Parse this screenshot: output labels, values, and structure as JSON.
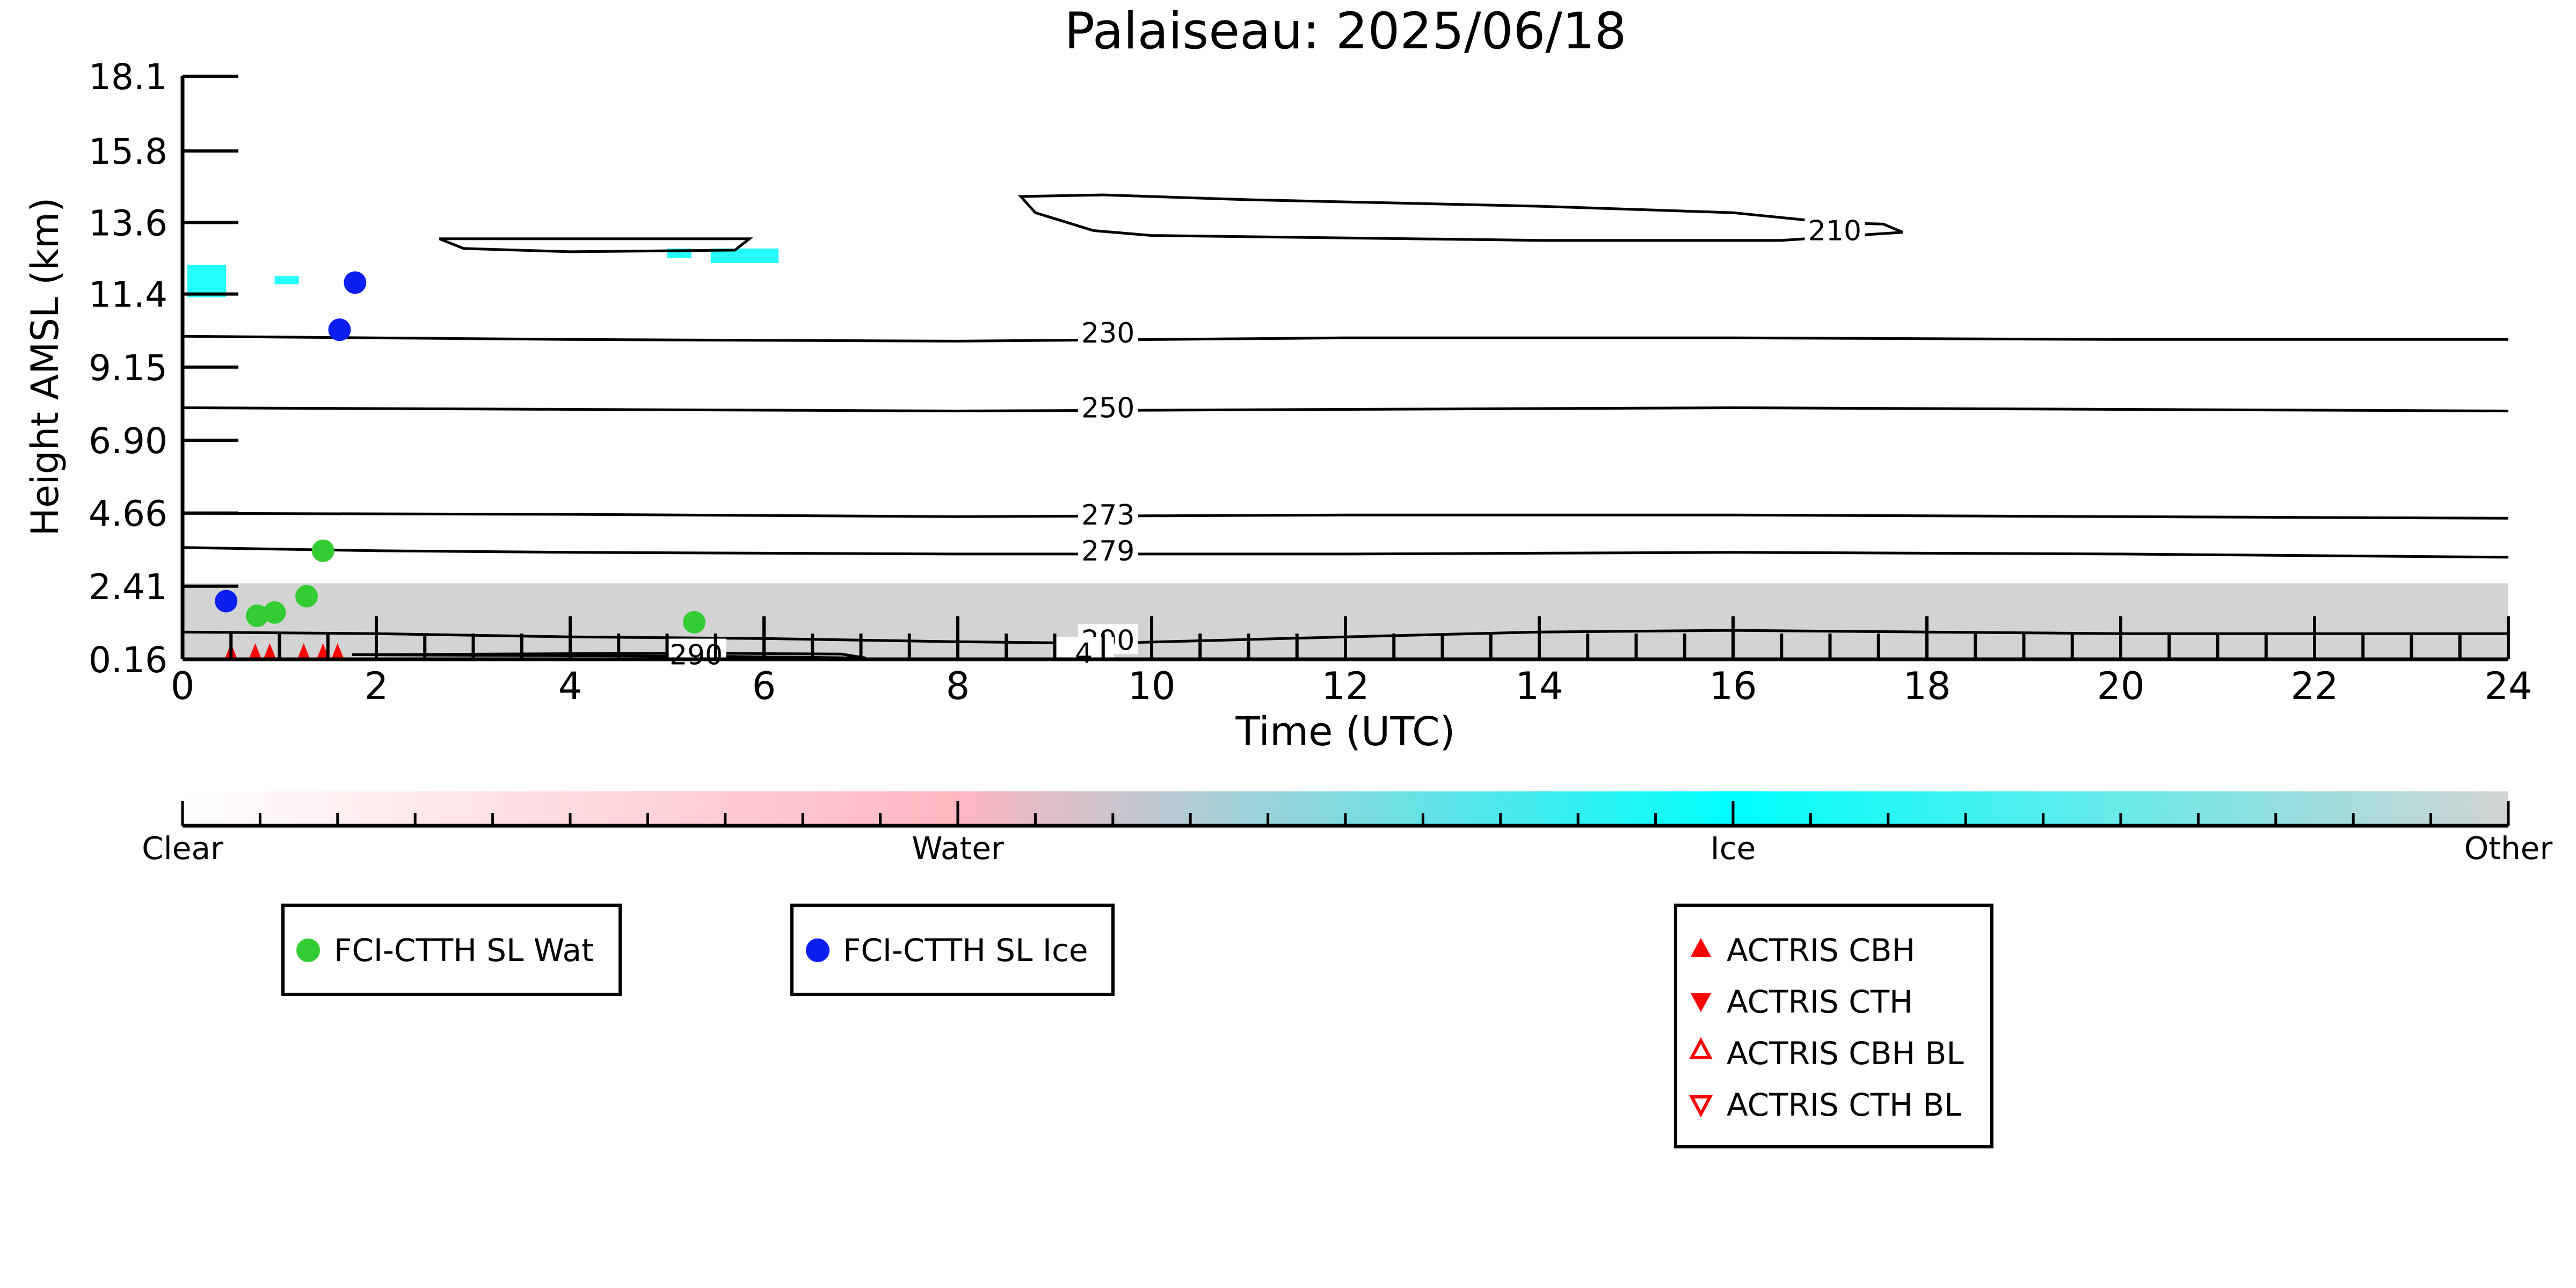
{
  "chart_data": {
    "type": "scatter",
    "title": "Palaiseau: 2025/06/18",
    "xlabel": "Time (UTC)",
    "ylabel": "Height AMSL (km)",
    "xlim": [
      0,
      24
    ],
    "xticks": [
      "0",
      "2",
      "4",
      "6",
      "8",
      "10",
      "12",
      "14",
      "16",
      "18",
      "20",
      "22",
      "24"
    ],
    "yticks": [
      "0.16",
      "2.41",
      "4.66",
      "6.90",
      "9.15",
      "11.4",
      "13.6",
      "15.8",
      "18.1"
    ],
    "ytick_values": [
      0.16,
      2.41,
      4.66,
      6.9,
      9.15,
      11.4,
      13.6,
      15.8,
      18.1
    ],
    "ylim": [
      0.16,
      18.1
    ],
    "grid": false,
    "colorbar": {
      "labels": [
        "Clear",
        "Water",
        "Ice",
        "Other"
      ],
      "colors": [
        "#ffffff",
        "#ffb6c1",
        "#00ffff",
        "#d3d3d3"
      ]
    },
    "isotherm_labels": [
      {
        "label": "210",
        "x": 17.05,
        "y": 13.35
      },
      {
        "label": "230",
        "x": 9.55,
        "y": 10.2
      },
      {
        "label": "250",
        "x": 9.55,
        "y": 7.9
      },
      {
        "label": "273",
        "x": 9.55,
        "y": 4.6
      },
      {
        "label": "279",
        "x": 9.55,
        "y": 3.5
      },
      {
        "label": "290",
        "x": 9.55,
        "y": 0.75
      },
      {
        "label": "290",
        "x": 5.3,
        "y": 0.3
      },
      {
        "label": "4",
        "x": 9.3,
        "y": 0.35
      }
    ],
    "isotherms": [
      {
        "label": "230",
        "points": [
          [
            0,
            10.1
          ],
          [
            4,
            10.0
          ],
          [
            8,
            9.95
          ],
          [
            12,
            10.05
          ],
          [
            16,
            10.05
          ],
          [
            20,
            10.0
          ],
          [
            24,
            10.0
          ]
        ]
      },
      {
        "label": "250",
        "points": [
          [
            0,
            7.9
          ],
          [
            4,
            7.85
          ],
          [
            8,
            7.8
          ],
          [
            12,
            7.85
          ],
          [
            16,
            7.9
          ],
          [
            20,
            7.85
          ],
          [
            24,
            7.8
          ]
        ]
      },
      {
        "label": "273",
        "points": [
          [
            0,
            4.65
          ],
          [
            4,
            4.62
          ],
          [
            8,
            4.55
          ],
          [
            12,
            4.6
          ],
          [
            16,
            4.6
          ],
          [
            20,
            4.55
          ],
          [
            24,
            4.5
          ]
        ]
      },
      {
        "label": "279",
        "points": [
          [
            0,
            3.6
          ],
          [
            2,
            3.5
          ],
          [
            4,
            3.45
          ],
          [
            8,
            3.4
          ],
          [
            12,
            3.4
          ],
          [
            16,
            3.45
          ],
          [
            20,
            3.4
          ],
          [
            24,
            3.3
          ]
        ]
      },
      {
        "label": "290",
        "points": [
          [
            0,
            1.0
          ],
          [
            2,
            0.95
          ],
          [
            4,
            0.85
          ],
          [
            6,
            0.8
          ],
          [
            8,
            0.7
          ],
          [
            9.5,
            0.65
          ],
          [
            12,
            0.85
          ],
          [
            14,
            1.0
          ],
          [
            16,
            1.05
          ],
          [
            18,
            1.0
          ],
          [
            20,
            0.95
          ],
          [
            22,
            0.95
          ],
          [
            24,
            0.95
          ]
        ]
      }
    ],
    "closed_contours": [
      {
        "points": [
          [
            2.65,
            13.1
          ],
          [
            5.85,
            13.1
          ],
          [
            5.7,
            12.75
          ],
          [
            4.0,
            12.7
          ],
          [
            2.9,
            12.8
          ],
          [
            2.65,
            13.1
          ]
        ]
      },
      {
        "points": [
          [
            8.65,
            14.4
          ],
          [
            9.5,
            14.45
          ],
          [
            11.0,
            14.3
          ],
          [
            14.0,
            14.1
          ],
          [
            16.0,
            13.9
          ],
          [
            17.0,
            13.6
          ],
          [
            17.55,
            13.55
          ],
          [
            17.75,
            13.3
          ],
          [
            16.5,
            13.05
          ],
          [
            14.0,
            13.05
          ],
          [
            10.0,
            13.2
          ],
          [
            9.4,
            13.35
          ],
          [
            8.8,
            13.9
          ],
          [
            8.65,
            14.4
          ]
        ]
      },
      {
        "points": [
          [
            1.75,
            0.3
          ],
          [
            5.6,
            0.25
          ],
          [
            7.05,
            0.2
          ],
          [
            6.8,
            0.32
          ],
          [
            5.2,
            0.35
          ],
          [
            1.75,
            0.3
          ]
        ]
      }
    ],
    "cloudnet_other_layer": {
      "x0": 0,
      "x1": 24,
      "y_top": 2.5,
      "y_bottom": 0.16
    },
    "cloudnet_ice_patches": [
      {
        "x0": 0.05,
        "x1": 0.45,
        "y0": 11.3,
        "y1": 12.3
      },
      {
        "x0": 0.95,
        "x1": 1.2,
        "y0": 11.7,
        "y1": 11.95
      },
      {
        "x0": 5.0,
        "x1": 5.25,
        "y0": 12.5,
        "y1": 12.8
      },
      {
        "x0": 5.45,
        "x1": 6.15,
        "y0": 12.35,
        "y1": 12.8
      }
    ],
    "series": [
      {
        "name": "FCI-CTTH SL Wat",
        "marker": "circle",
        "color": "#33cc33",
        "x": [
          0.77,
          0.95,
          1.28,
          1.45,
          5.28
        ],
        "y": [
          1.5,
          1.6,
          2.1,
          3.5,
          1.3
        ]
      },
      {
        "name": "FCI-CTTH SL Ice",
        "marker": "circle",
        "color": "#0b1ff0",
        "x": [
          0.45,
          1.62,
          1.78
        ],
        "y": [
          1.95,
          10.3,
          11.75
        ]
      },
      {
        "name": "ACTRIS CBH",
        "marker": "triangle-up",
        "color": "#ff0000",
        "x": [
          0.5,
          0.75,
          0.9,
          1.25,
          1.45,
          1.6
        ],
        "y": [
          0.16,
          0.16,
          0.16,
          0.16,
          0.16,
          0.16
        ]
      },
      {
        "name": "ACTRIS CTH",
        "marker": "triangle-down",
        "color": "#ff0000",
        "x": [],
        "y": []
      },
      {
        "name": "ACTRIS CBH BL",
        "marker": "triangle-up-open",
        "color": "#ff0000",
        "x": [],
        "y": []
      },
      {
        "name": "ACTRIS CTH BL",
        "marker": "triangle-down-open",
        "color": "#ff0000",
        "x": [],
        "y": []
      }
    ]
  }
}
